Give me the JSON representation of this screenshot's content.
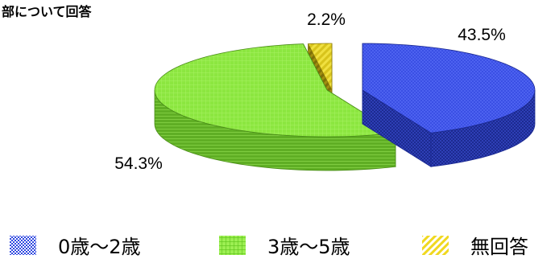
{
  "title_fragment": "部について回答",
  "chart_data": {
    "type": "pie",
    "style": "3d-exploded",
    "categories": [
      "0歳～2歳",
      "3歳～5歳",
      "無回答"
    ],
    "values": [
      43.5,
      54.3,
      2.2
    ],
    "data_labels": [
      "43.5%",
      "54.3%",
      "2.2%"
    ],
    "colors": [
      "#3c50e0",
      "#86e43a",
      "#e8d83a"
    ],
    "legend_position": "bottom"
  }
}
